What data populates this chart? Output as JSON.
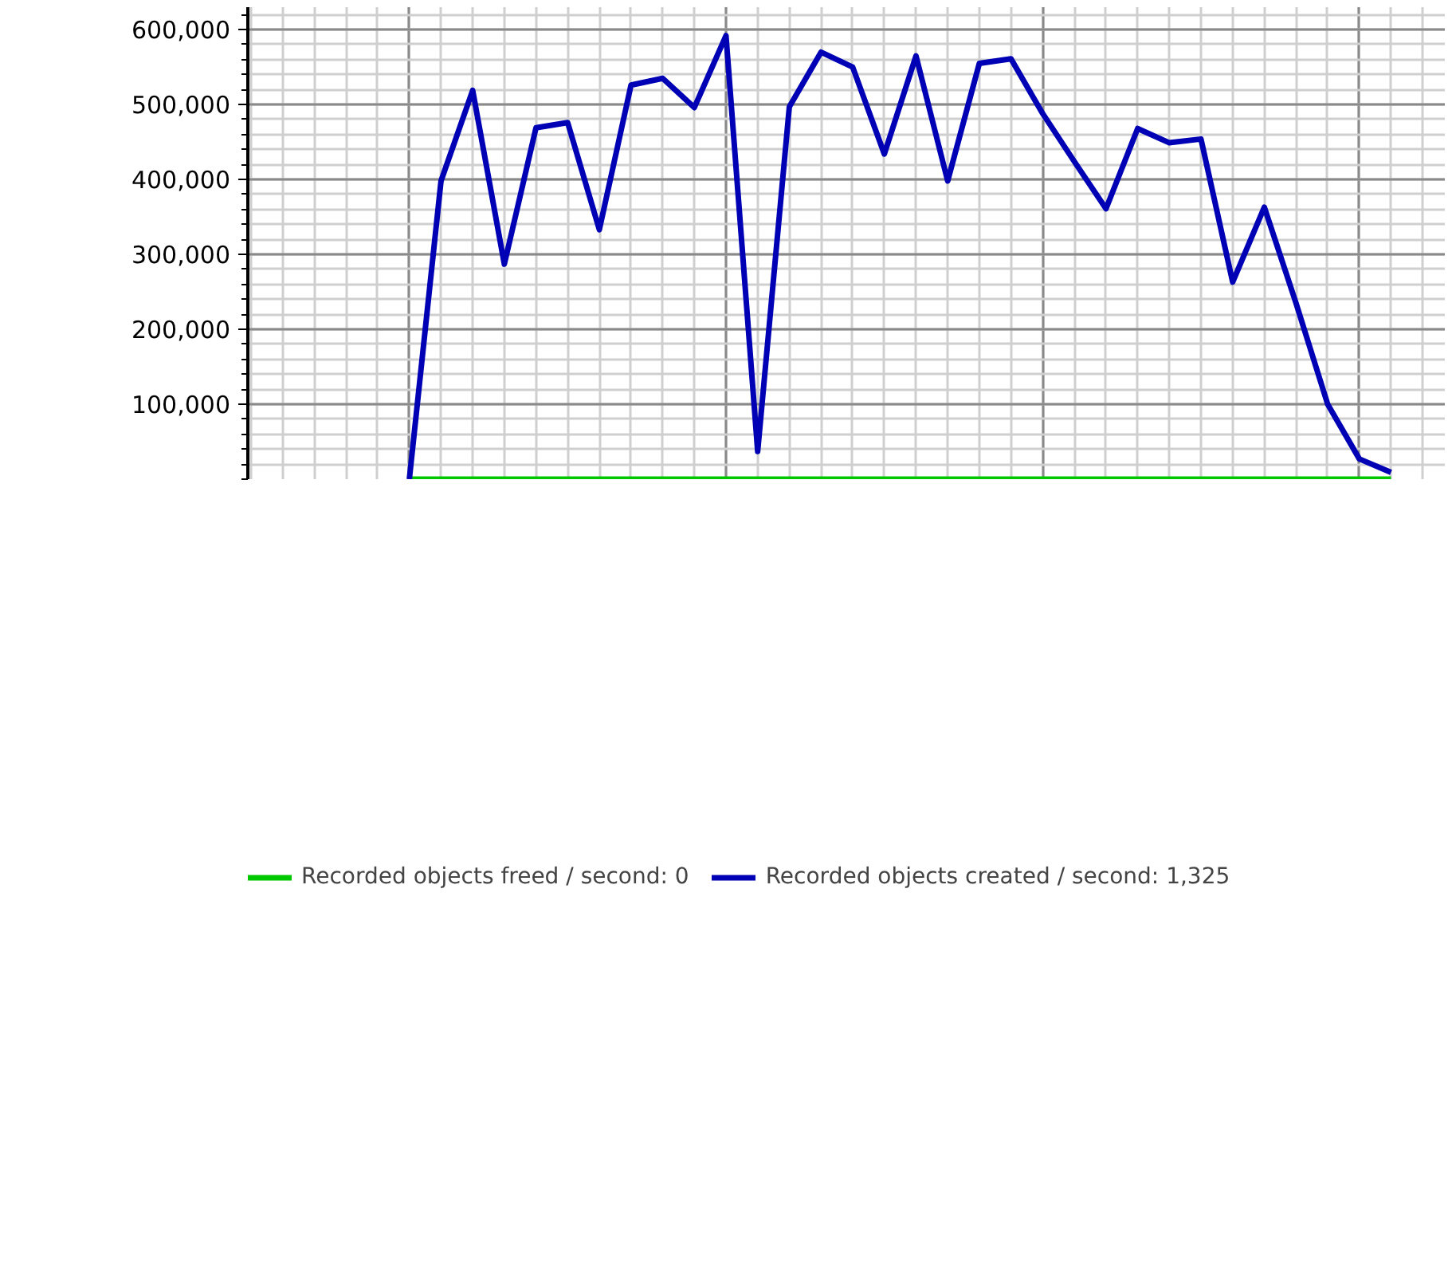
{
  "chart_data": {
    "type": "line",
    "categories": [
      null,
      null,
      null,
      null,
      null,
      null,
      null,
      null,
      null,
      null,
      null,
      null,
      null,
      null,
      null,
      null,
      null,
      null,
      null,
      null,
      null,
      null,
      null,
      null,
      null,
      null,
      null,
      null,
      null,
      null,
      null,
      null,
      null,
      null,
      null,
      null,
      null
    ],
    "series": [
      {
        "name": "Recorded objects freed / second: 0",
        "color": "#00c800",
        "values": [
          null,
          null,
          null,
          null,
          null,
          0,
          0,
          0,
          0,
          0,
          0,
          0,
          0,
          0,
          0,
          0,
          0,
          0,
          0,
          0,
          0,
          0,
          0,
          0,
          0,
          0,
          0,
          0,
          0,
          0,
          0,
          0,
          0,
          0,
          0,
          0,
          0
        ]
      },
      {
        "name": "Recorded objects created / second: 1,325",
        "color": "#0000b4",
        "values": [
          null,
          null,
          null,
          null,
          null,
          0,
          398000,
          519000,
          287000,
          469000,
          476000,
          333000,
          526000,
          535000,
          496000,
          592000,
          37000,
          497000,
          570000,
          550000,
          434000,
          565000,
          398000,
          555000,
          561000,
          488000,
          424000,
          361000,
          468000,
          449000,
          454000,
          263000,
          363000,
          235000,
          100000,
          27000,
          9000
        ]
      }
    ],
    "ylim": [
      0,
      630000
    ],
    "yticks": [
      {
        "value": 100000,
        "label": "100,000"
      },
      {
        "value": 200000,
        "label": "200,000"
      },
      {
        "value": 300000,
        "label": "300,000"
      },
      {
        "value": 400000,
        "label": "400,000"
      },
      {
        "value": 500000,
        "label": "500,000"
      },
      {
        "value": 600000,
        "label": "600,000"
      }
    ],
    "grid": true,
    "tick_labels": "y",
    "legend": "bottom",
    "line_style": "solid"
  }
}
